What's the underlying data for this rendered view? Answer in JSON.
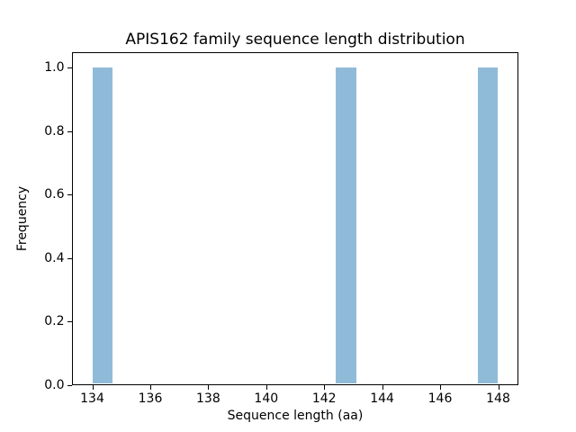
{
  "chart_data": {
    "type": "bar",
    "subtype": "histogram",
    "title": "APIS162 family sequence length distribution",
    "xlabel": "Sequence length (aa)",
    "ylabel": "Frequency",
    "sequence_lengths_aa": [
      134,
      143,
      148
    ],
    "bin_count": 20,
    "bin_width": 0.7,
    "bars": [
      {
        "x_start": 134.0,
        "x_end": 134.7,
        "frequency": 1.0
      },
      {
        "x_start": 142.4,
        "x_end": 143.1,
        "frequency": 1.0
      },
      {
        "x_start": 147.3,
        "x_end": 148.0,
        "frequency": 1.0
      }
    ],
    "x_ticks": [
      134,
      136,
      138,
      140,
      142,
      144,
      146,
      148
    ],
    "y_ticks": [
      0.0,
      0.2,
      0.4,
      0.6,
      0.8,
      1.0
    ],
    "xlim": [
      133.3,
      148.7
    ],
    "ylim": [
      0.0,
      1.05
    ],
    "bar_color": "#8fbbd9",
    "spine_color": "#000000",
    "text_color": "#000000",
    "background_color": "#ffffff",
    "grid": false,
    "legend_position": "none"
  }
}
